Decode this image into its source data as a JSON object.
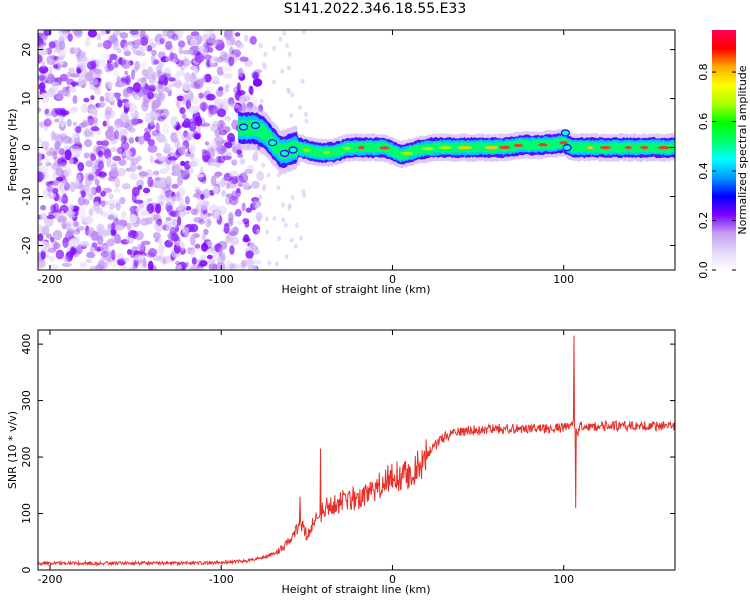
{
  "title": "S141.2022.346.18.55.E33",
  "chart_data": [
    {
      "type": "heatmap",
      "xlabel": "Height of straight line (km)",
      "ylabel": "Frequency (Hz)",
      "xlim": [
        -207,
        165
      ],
      "ylim": [
        -25,
        24
      ],
      "xticks": [
        -200,
        -100,
        0,
        100
      ],
      "yticks": [
        -20,
        -10,
        0,
        10,
        20
      ],
      "colorbar": {
        "label": "Normalized spectral amplitude",
        "range": [
          0,
          0.97
        ],
        "ticks": [
          0.0,
          0.2,
          0.4,
          0.6,
          0.8
        ],
        "colormap": [
          "#ffffff",
          "#e2d6f9",
          "#c69cf2",
          "#7a00ff",
          "#0000ff",
          "#0099ff",
          "#00ffff",
          "#00ff66",
          "#00ff00",
          "#aaff00",
          "#ffff00",
          "#ffaa00",
          "#ff0000",
          "#ff0055"
        ]
      },
      "trace_center_hz": [
        [
          -90,
          4
        ],
        [
          -80,
          4
        ],
        [
          -75,
          3
        ],
        [
          -70,
          1
        ],
        [
          -65,
          -1
        ],
        [
          -55,
          0
        ],
        [
          -45,
          -1
        ],
        [
          -35,
          -1
        ],
        [
          -25,
          0
        ],
        [
          -15,
          0
        ],
        [
          -5,
          0
        ],
        [
          5,
          -1.5
        ],
        [
          15,
          -0.5
        ],
        [
          25,
          0
        ],
        [
          35,
          0
        ],
        [
          45,
          0
        ],
        [
          55,
          0
        ],
        [
          65,
          0
        ],
        [
          75,
          0.5
        ],
        [
          85,
          0.5
        ],
        [
          95,
          0.8
        ],
        [
          100,
          1
        ],
        [
          105,
          0
        ],
        [
          115,
          0
        ],
        [
          125,
          0
        ],
        [
          135,
          0
        ],
        [
          145,
          0
        ],
        [
          155,
          0
        ],
        [
          165,
          0
        ]
      ]
    },
    {
      "type": "line",
      "xlabel": "Height of straight line (km)",
      "ylabel": "SNR (10 * v/v)",
      "xlim": [
        -207,
        165
      ],
      "ylim": [
        0,
        425
      ],
      "xticks": [
        -200,
        -100,
        0,
        100
      ],
      "yticks": [
        0,
        100,
        200,
        300,
        400
      ],
      "series": [
        {
          "color": "#e8302a",
          "x": [
            -207,
            -180,
            -150,
            -120,
            -100,
            -85,
            -75,
            -68,
            -62,
            -58,
            -55,
            -52,
            -50,
            -45,
            -42,
            -38,
            -30,
            -20,
            -10,
            0,
            10,
            15,
            20,
            25,
            30,
            40,
            50,
            60,
            70,
            80,
            90,
            100,
            104,
            106,
            107,
            108,
            110,
            120,
            130,
            140,
            150,
            165
          ],
          "y": [
            12,
            12,
            12,
            12,
            13,
            16,
            22,
            30,
            45,
            60,
            75,
            80,
            60,
            90,
            100,
            110,
            120,
            130,
            145,
            165,
            170,
            185,
            205,
            220,
            235,
            245,
            248,
            250,
            250,
            250,
            250,
            252,
            255,
            260,
            250,
            240,
            255,
            255,
            255,
            255,
            255,
            255
          ]
        }
      ],
      "spikes": [
        {
          "x": -54,
          "y": 130
        },
        {
          "x": -42,
          "y": 215
        },
        {
          "x": 106,
          "y": 415
        },
        {
          "x": 107,
          "y": 110
        }
      ]
    }
  ]
}
